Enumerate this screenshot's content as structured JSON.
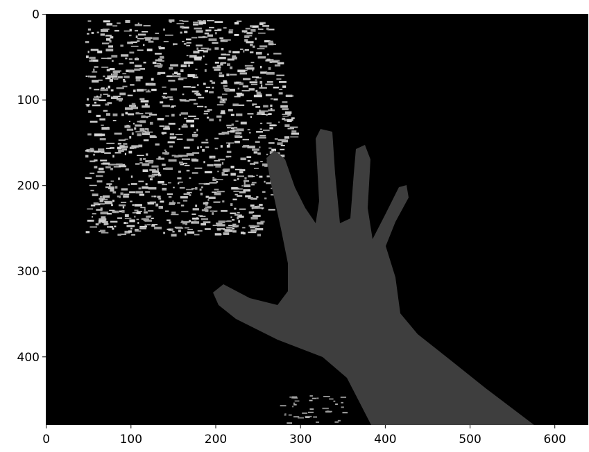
{
  "chart_data": {
    "type": "image",
    "xlim": [
      -0.5,
      639.5
    ],
    "ylim": [
      479.5,
      -0.5
    ],
    "xticks": [
      0,
      100,
      200,
      300,
      400,
      500,
      600
    ],
    "yticks": [
      0,
      100,
      200,
      300,
      400
    ]
  }
}
